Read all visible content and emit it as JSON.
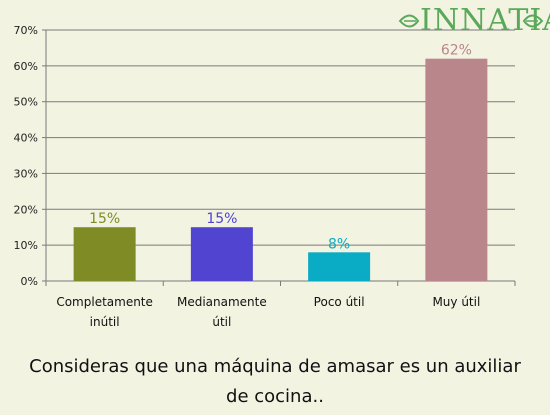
{
  "logo": {
    "text": "INNATIA"
  },
  "chart_data": {
    "type": "bar",
    "title": "Consideras que una máquina de amasar es un auxiliar de cocina..",
    "categories": [
      [
        "Completamente",
        "inútil"
      ],
      [
        "Medianamente",
        "útil"
      ],
      [
        "Poco útil"
      ],
      [
        "Muy útil"
      ]
    ],
    "values": [
      15,
      15,
      8,
      62
    ],
    "value_labels": [
      "15%",
      "15%",
      "8%",
      "62%"
    ],
    "colors": [
      "#7f8c26",
      "#5044d0",
      "#0aabc5",
      "#b9868c"
    ],
    "label_colors": [
      "#7f8c26",
      "#5044d0",
      "#0aabc5",
      "#b9868c"
    ],
    "ylim": [
      0,
      70
    ],
    "yticks": [
      "0%",
      "10%",
      "20%",
      "30%",
      "40%",
      "50%",
      "60%",
      "70%"
    ],
    "grid": true,
    "xlabel": "",
    "ylabel": ""
  }
}
